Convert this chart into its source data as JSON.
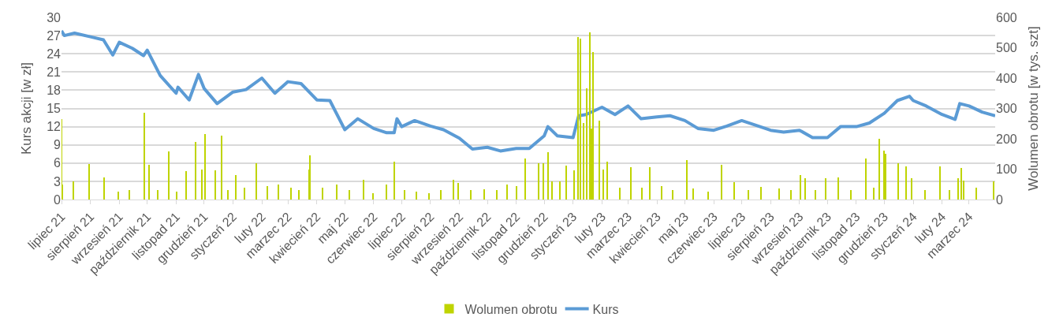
{
  "chart_data": {
    "type": "bar",
    "ylabel": "Kurs akcji [w zł]",
    "y2label": "Wolumen obrotu [w tys. szt]",
    "xlim": [
      "2021-07-01",
      "2024-03-29"
    ],
    "xticks": [
      {
        "value": "2021-07-01",
        "label": "lipiec 21"
      },
      {
        "value": "2021-08-01",
        "label": "sierpień 21"
      },
      {
        "value": "2021-09-01",
        "label": "wrzesień 21"
      },
      {
        "value": "2021-10-01",
        "label": "październik 21"
      },
      {
        "value": "2021-11-01",
        "label": "listopad 21"
      },
      {
        "value": "2021-12-01",
        "label": "grudzień 21"
      },
      {
        "value": "2022-01-01",
        "label": "styczeń 22"
      },
      {
        "value": "2022-02-01",
        "label": "luty 22"
      },
      {
        "value": "2022-03-01",
        "label": "marzec 22"
      },
      {
        "value": "2022-04-01",
        "label": "kwiecień 22"
      },
      {
        "value": "2022-05-01",
        "label": "maj 22"
      },
      {
        "value": "2022-06-01",
        "label": "czerwiec 22"
      },
      {
        "value": "2022-07-01",
        "label": "lipiec 22"
      },
      {
        "value": "2022-08-01",
        "label": "sierpień 22"
      },
      {
        "value": "2022-09-01",
        "label": "wrzesień 22"
      },
      {
        "value": "2022-10-01",
        "label": "październik 22"
      },
      {
        "value": "2022-11-01",
        "label": "listopad 22"
      },
      {
        "value": "2022-12-01",
        "label": "grudzień 22"
      },
      {
        "value": "2023-01-01",
        "label": "styczeń 23"
      },
      {
        "value": "2023-02-01",
        "label": "luty 23"
      },
      {
        "value": "2023-03-01",
        "label": "marzec 23"
      },
      {
        "value": "2023-04-01",
        "label": "kwiecień 23"
      },
      {
        "value": "2023-05-01",
        "label": "maj 23"
      },
      {
        "value": "2023-06-01",
        "label": "czerwiec 23"
      },
      {
        "value": "2023-07-01",
        "label": "lipiec 23"
      },
      {
        "value": "2023-08-01",
        "label": "sierpień 23"
      },
      {
        "value": "2023-09-01",
        "label": "wrzesień 23"
      },
      {
        "value": "2023-10-01",
        "label": "październik 23"
      },
      {
        "value": "2023-11-01",
        "label": "listopad 23"
      },
      {
        "value": "2023-12-01",
        "label": "grudzień 23"
      },
      {
        "value": "2024-01-01",
        "label": "styczeń 24"
      },
      {
        "value": "2024-02-01",
        "label": "luty 24"
      },
      {
        "value": "2024-03-01",
        "label": "marzec 24"
      }
    ],
    "ylim": [
      0,
      30
    ],
    "yticks": [
      0,
      3,
      6,
      9,
      12,
      15,
      18,
      21,
      24,
      27,
      30
    ],
    "y2lim": [
      0,
      600
    ],
    "y2ticks": [
      0,
      100,
      200,
      300,
      400,
      500,
      600
    ],
    "grid": "y",
    "legend": "bottom",
    "series": [
      {
        "name": "Wolumen obrotu",
        "axis": "y2",
        "color": "#bfd400",
        "x": [
          "2021-07-01",
          "2021-07-02",
          "2021-07-14",
          "2021-07-31",
          "2021-08-16",
          "2021-08-31",
          "2021-09-12",
          "2021-09-28",
          "2021-10-03",
          "2021-10-12",
          "2021-10-24",
          "2021-11-02",
          "2021-11-12",
          "2021-11-22",
          "2021-11-29",
          "2021-12-02",
          "2021-12-13",
          "2021-12-20",
          "2021-12-27",
          "2022-01-04",
          "2022-01-13",
          "2022-01-26",
          "2022-02-07",
          "2022-02-19",
          "2022-03-04",
          "2022-03-13",
          "2022-03-24",
          "2022-03-25",
          "2022-04-07",
          "2022-04-22",
          "2022-05-06",
          "2022-05-21",
          "2022-05-31",
          "2022-06-15",
          "2022-06-23",
          "2022-07-04",
          "2022-07-17",
          "2022-07-30",
          "2022-08-12",
          "2022-08-26",
          "2022-08-31",
          "2022-09-13",
          "2022-09-28",
          "2022-10-11",
          "2022-10-22",
          "2022-11-01",
          "2022-11-11",
          "2022-11-25",
          "2022-11-30",
          "2022-12-05",
          "2022-12-09",
          "2022-12-18",
          "2022-12-25",
          "2023-01-02",
          "2023-01-06",
          "2023-01-09",
          "2023-01-12",
          "2023-01-16",
          "2023-01-19",
          "2023-01-21",
          "2023-01-22",
          "2023-01-29",
          "2023-02-02",
          "2023-02-07",
          "2023-02-20",
          "2023-03-04",
          "2023-03-16",
          "2023-03-24",
          "2023-04-06",
          "2023-04-18",
          "2023-05-03",
          "2023-05-10",
          "2023-05-26",
          "2023-06-09",
          "2023-06-23",
          "2023-07-08",
          "2023-07-22",
          "2023-08-10",
          "2023-08-23",
          "2023-09-02",
          "2023-09-07",
          "2023-09-18",
          "2023-09-29",
          "2023-10-13",
          "2023-10-26",
          "2023-11-11",
          "2023-11-20",
          "2023-11-26",
          "2023-12-01",
          "2023-12-02",
          "2023-12-16",
          "2023-12-24",
          "2023-12-30",
          "2024-01-14",
          "2024-01-30",
          "2024-02-09",
          "2024-02-18",
          "2024-02-22",
          "2024-02-24",
          "2024-03-09",
          "2024-03-27"
        ],
        "values": [
          265,
          50,
          60,
          118,
          74,
          25,
          30,
          287,
          114,
          30,
          158,
          25,
          94,
          190,
          100,
          215,
          96,
          210,
          30,
          81,
          40,
          119,
          45,
          50,
          40,
          30,
          100,
          146,
          40,
          50,
          30,
          64,
          20,
          50,
          124,
          30,
          25,
          20,
          30,
          64,
          54,
          30,
          35,
          30,
          50,
          45,
          136,
          119,
          119,
          156,
          60,
          60,
          113,
          97,
          536,
          531,
          252,
          366,
          551,
          235,
          486,
          259,
          99,
          124,
          40,
          106,
          40,
          106,
          45,
          30,
          131,
          37,
          25,
          114,
          57,
          30,
          42,
          37,
          30,
          81,
          69,
          30,
          69,
          74,
          30,
          136,
          40,
          200,
          161,
          151,
          119,
          109,
          69,
          30,
          109,
          30,
          69,
          104,
          62,
          40,
          59
        ]
      },
      {
        "name": "Kurs",
        "type": "line",
        "axis": "y",
        "color": "#5b9bd5",
        "x": [
          "2021-07-01",
          "2021-07-04",
          "2021-07-15",
          "2021-08-01",
          "2021-08-15",
          "2021-08-25",
          "2021-09-01",
          "2021-09-15",
          "2021-09-27",
          "2021-10-01",
          "2021-10-15",
          "2021-11-01",
          "2021-11-03",
          "2021-11-15",
          "2021-11-25",
          "2021-12-01",
          "2021-12-15",
          "2022-01-01",
          "2022-01-15",
          "2022-02-01",
          "2022-02-15",
          "2022-03-01",
          "2022-03-15",
          "2022-04-01",
          "2022-04-15",
          "2022-05-01",
          "2022-05-15",
          "2022-06-01",
          "2022-06-15",
          "2022-06-23",
          "2022-06-26",
          "2022-07-01",
          "2022-07-15",
          "2022-08-01",
          "2022-08-15",
          "2022-09-01",
          "2022-09-15",
          "2022-10-01",
          "2022-10-15",
          "2022-11-01",
          "2022-11-15",
          "2022-12-01",
          "2022-12-05",
          "2022-12-15",
          "2023-01-01",
          "2023-01-07",
          "2023-01-15",
          "2023-02-01",
          "2023-02-15",
          "2023-03-01",
          "2023-03-15",
          "2023-04-01",
          "2023-04-15",
          "2023-05-01",
          "2023-05-15",
          "2023-06-01",
          "2023-06-15",
          "2023-07-01",
          "2023-07-15",
          "2023-08-01",
          "2023-08-15",
          "2023-09-01",
          "2023-09-15",
          "2023-10-01",
          "2023-10-15",
          "2023-11-01",
          "2023-11-15",
          "2023-12-01",
          "2023-12-15",
          "2023-12-28",
          "2024-01-01",
          "2024-01-15",
          "2024-02-01",
          "2024-02-15",
          "2024-02-20",
          "2024-03-01",
          "2024-03-15",
          "2024-03-29"
        ],
        "values": [
          27.8,
          27.0,
          27.4,
          26.8,
          26.3,
          23.8,
          25.9,
          24.9,
          23.7,
          24.6,
          20.4,
          17.5,
          18.5,
          16.4,
          20.6,
          18.3,
          15.8,
          17.7,
          18.1,
          20.0,
          17.5,
          19.4,
          19.1,
          16.4,
          16.3,
          11.5,
          13.3,
          11.7,
          11.0,
          11.0,
          13.3,
          12.0,
          13.0,
          12.1,
          11.5,
          10.1,
          8.3,
          8.6,
          8.0,
          8.4,
          8.4,
          10.5,
          12.0,
          10.5,
          10.2,
          13.8,
          14.0,
          15.2,
          14.0,
          15.4,
          13.3,
          13.6,
          13.8,
          13.0,
          11.7,
          11.4,
          12.1,
          13.0,
          12.3,
          11.4,
          11.1,
          11.4,
          10.2,
          10.2,
          12.0,
          12.0,
          12.6,
          14.2,
          16.3,
          17.0,
          16.3,
          15.4,
          14.0,
          13.2,
          15.8,
          15.4,
          14.4,
          13.8
        ]
      }
    ]
  }
}
